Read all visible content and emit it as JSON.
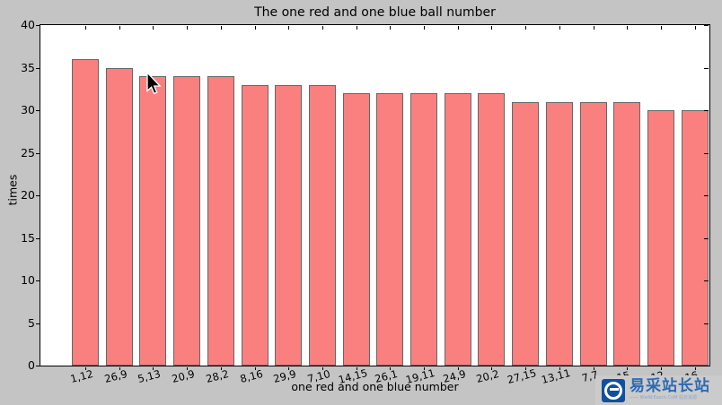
{
  "chart_data": {
    "type": "bar",
    "title": "The one red and one blue ball number",
    "xlabel": "one red and one blue number",
    "ylabel": "times",
    "categories": [
      "1,12",
      "26,9",
      "5,13",
      "20,9",
      "28,2",
      "8,16",
      "29,9",
      "7,10",
      "14,15",
      "26,1",
      "19,11",
      "24,9",
      "20,2",
      "27,15",
      "13,11",
      "7,7",
      "15",
      "12",
      "16"
    ],
    "values": [
      36,
      35,
      34,
      34,
      34,
      33,
      33,
      33,
      32,
      32,
      32,
      32,
      32,
      31,
      31,
      31,
      31,
      30,
      30
    ],
    "ylim": [
      0,
      40
    ],
    "yticks": [
      0,
      5,
      10,
      15,
      20,
      25,
      30,
      35,
      40
    ],
    "grid": false,
    "legend": null,
    "bar_color": "#FA8080",
    "bar_edge_color": "#666666",
    "figure_background": "#C4C4C4",
    "plot_background": "#FFFFFF"
  },
  "watermark": {
    "site_name": "易采站长站",
    "tagline": "—— WwW.Easck.CoM 站长资源",
    "logo_bg": "#10509E",
    "text_color": "#2C6AB5",
    "tagline_color": "#8CA6C6"
  }
}
